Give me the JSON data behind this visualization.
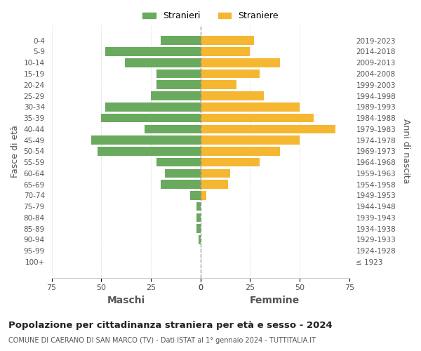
{
  "age_groups": [
    "100+",
    "95-99",
    "90-94",
    "85-89",
    "80-84",
    "75-79",
    "70-74",
    "65-69",
    "60-64",
    "55-59",
    "50-54",
    "45-49",
    "40-44",
    "35-39",
    "30-34",
    "25-29",
    "20-24",
    "15-19",
    "10-14",
    "5-9",
    "0-4"
  ],
  "birth_years": [
    "≤ 1923",
    "1924-1928",
    "1929-1933",
    "1934-1938",
    "1939-1943",
    "1944-1948",
    "1949-1953",
    "1954-1958",
    "1959-1963",
    "1964-1968",
    "1969-1973",
    "1974-1978",
    "1979-1983",
    "1984-1988",
    "1989-1993",
    "1994-1998",
    "1999-2003",
    "2004-2008",
    "2009-2013",
    "2014-2018",
    "2019-2023"
  ],
  "maschi": [
    0,
    0,
    1,
    2,
    2,
    2,
    5,
    20,
    18,
    22,
    52,
    55,
    28,
    50,
    48,
    25,
    22,
    22,
    38,
    48,
    20
  ],
  "femmine": [
    0,
    0,
    0,
    0,
    0,
    0,
    3,
    14,
    15,
    30,
    40,
    50,
    68,
    57,
    50,
    32,
    18,
    30,
    40,
    25,
    27
  ],
  "male_color": "#6aaa5e",
  "female_color": "#f5b731",
  "male_label": "Stranieri",
  "female_label": "Straniere",
  "title": "Popolazione per cittadinanza straniera per età e sesso - 2024",
  "subtitle": "COMUNE DI CAERANO DI SAN MARCO (TV) - Dati ISTAT al 1° gennaio 2024 - TUTTITALIA.IT",
  "xlabel_left": "Maschi",
  "xlabel_right": "Femmine",
  "ylabel_left": "Fasce di età",
  "ylabel_right": "Anni di nascita",
  "xlim": 75,
  "background_color": "#ffffff",
  "grid_color": "#cccccc"
}
